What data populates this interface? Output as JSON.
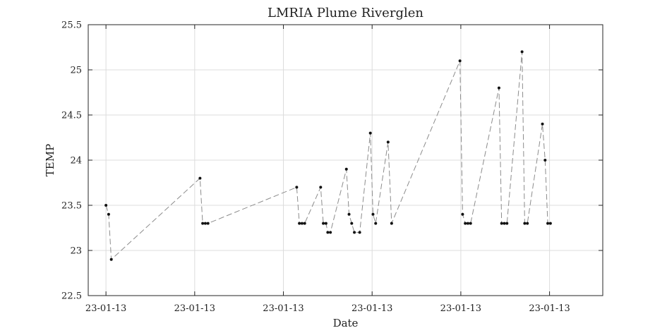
{
  "chart_data": {
    "type": "line",
    "title": "LMRIA Plume Riverglen",
    "xlabel": "Date",
    "ylabel": "TEMP",
    "ylim": [
      22.5,
      25.5
    ],
    "yticks": [
      22.5,
      23,
      23.5,
      24,
      24.5,
      25,
      25.5
    ],
    "ytick_labels": [
      "22.5",
      "23",
      "23.5",
      "24",
      "24.5",
      "25",
      "25.5"
    ],
    "xlim": [
      -0.2,
      5.6
    ],
    "xticks": [
      0,
      1,
      2,
      3,
      4,
      5
    ],
    "xtick_labels": [
      "23-01-13",
      "23-01-13",
      "23-01-13",
      "23-01-13",
      "23-01-13",
      "23-01-13"
    ],
    "grid": true,
    "series": [
      {
        "x": [
          0.0,
          0.03,
          0.06,
          1.06,
          1.09,
          1.12,
          1.15,
          2.15,
          2.18,
          2.21,
          2.24,
          2.42,
          2.45,
          2.48,
          2.5,
          2.53,
          2.71,
          2.74,
          2.77,
          2.8,
          2.86,
          2.98,
          3.01,
          3.04,
          3.18,
          3.22,
          3.99,
          4.02,
          4.05,
          4.08,
          4.11,
          4.43,
          4.46,
          4.49,
          4.52,
          4.69,
          4.72,
          4.75,
          4.92,
          4.95,
          4.98,
          5.01
        ],
        "y": [
          23.5,
          23.4,
          22.9,
          23.8,
          23.3,
          23.3,
          23.3,
          23.7,
          23.3,
          23.3,
          23.3,
          23.7,
          23.3,
          23.3,
          23.2,
          23.2,
          23.9,
          23.4,
          23.3,
          23.2,
          23.2,
          24.3,
          23.4,
          23.3,
          24.2,
          23.3,
          25.1,
          23.4,
          23.3,
          23.3,
          23.3,
          24.8,
          23.3,
          23.3,
          23.3,
          25.2,
          23.3,
          23.3,
          24.4,
          24.0,
          23.3,
          23.3
        ]
      }
    ]
  }
}
